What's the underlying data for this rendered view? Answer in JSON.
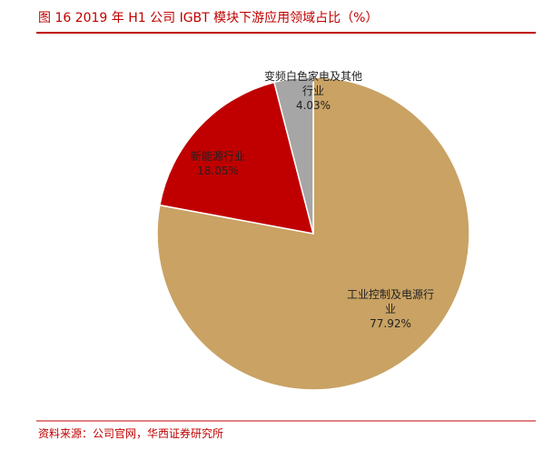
{
  "chart_data": {
    "type": "pie",
    "title": "图 16  2019 年 H1 公司 IGBT 模块下游应用领域占比（%）",
    "source": "资料来源：公司官网，华西证券研究所",
    "categories": [
      "工业控制及电源行业",
      "新能源行业",
      "变频白色家电及其他行业"
    ],
    "values": [
      77.92,
      18.05,
      4.03
    ],
    "value_labels": [
      "77.92%",
      "18.05%",
      "4.03%"
    ],
    "colors": [
      "#c9a264",
      "#c00000",
      "#a6a6a6"
    ]
  }
}
